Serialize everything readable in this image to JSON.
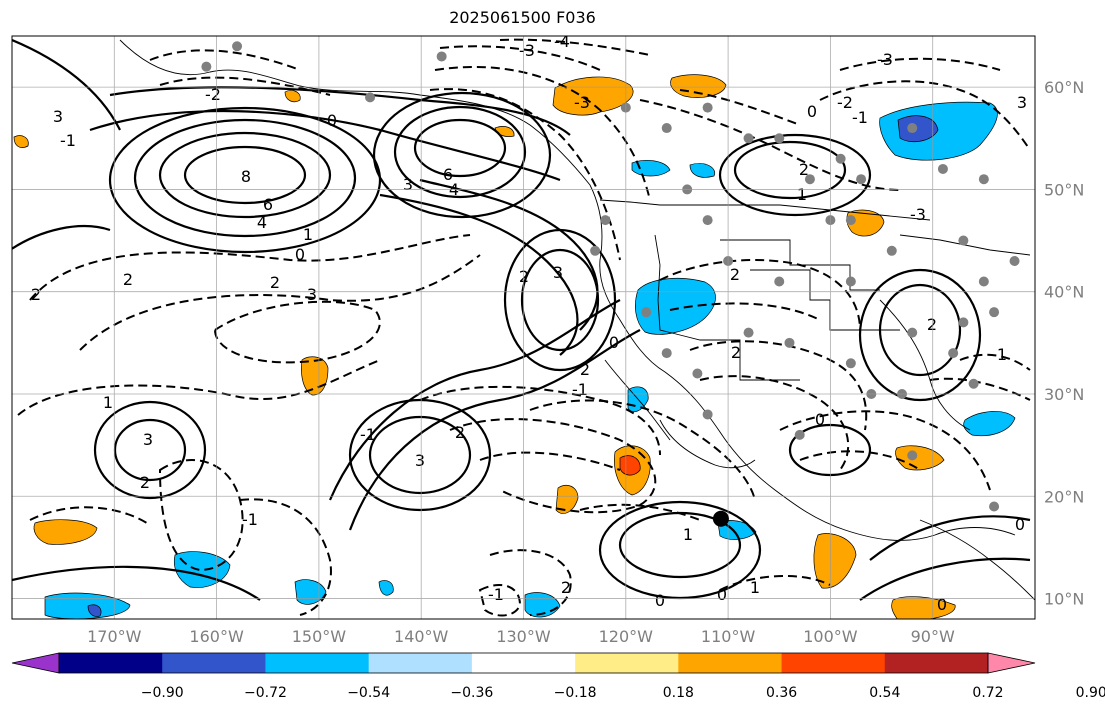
{
  "title": "2025061500 F036",
  "map": {
    "extent_lon": [
      -180,
      -80
    ],
    "extent_lat": [
      8,
      65
    ],
    "lon_ticks": [
      {
        "v": -170,
        "label": "170°W"
      },
      {
        "v": -160,
        "label": "160°W"
      },
      {
        "v": -150,
        "label": "150°W"
      },
      {
        "v": -140,
        "label": "140°W"
      },
      {
        "v": -130,
        "label": "130°W"
      },
      {
        "v": -120,
        "label": "120°W"
      },
      {
        "v": -110,
        "label": "110°W"
      },
      {
        "v": -100,
        "label": "100°W"
      },
      {
        "v": -90,
        "label": "90°W"
      }
    ],
    "lat_ticks": [
      {
        "v": 10,
        "label": "10°N"
      },
      {
        "v": 20,
        "label": "20°N"
      },
      {
        "v": 30,
        "label": "30°N"
      },
      {
        "v": 40,
        "label": "40°N"
      },
      {
        "v": 50,
        "label": "50°N"
      },
      {
        "v": 60,
        "label": "60°N"
      }
    ],
    "gridlines": true,
    "marker": {
      "lon": -110.7,
      "lat": 17.8
    }
  },
  "contour_labels": [
    "8",
    "6",
    "4",
    "3",
    "0",
    "1",
    "2",
    "3",
    "6",
    "4",
    "3",
    "2",
    "3",
    "2",
    "1",
    "3",
    "2",
    "2",
    "2",
    "-1",
    "1",
    "0",
    "0",
    "1",
    "2",
    "2",
    "2",
    "-4",
    "-3",
    "-3",
    "-2",
    "-1",
    "3",
    "2",
    "-2",
    "-3",
    "-1",
    "0",
    "0",
    "-1",
    "0",
    "-1",
    "0",
    "1",
    "0",
    "0",
    "1",
    "2",
    "-1",
    "3",
    "2",
    "-3"
  ],
  "colorbar": {
    "colors": [
      "#9933cc",
      "#000088",
      "#3355cc",
      "#00bfff",
      "#b0e0ff",
      "#ffffff",
      "#ffee88",
      "#ffa500",
      "#ff4400",
      "#b22222",
      "#ff88aa"
    ],
    "tick_labels": [
      "−0.90",
      "−0.72",
      "−0.54",
      "−0.36",
      "−0.18",
      "0.18",
      "0.36",
      "0.54",
      "0.72",
      "0.90"
    ]
  },
  "station_markers": [
    [
      -158,
      64
    ],
    [
      -161,
      62
    ],
    [
      -145,
      59
    ],
    [
      -138,
      63
    ],
    [
      -112,
      58
    ],
    [
      -120,
      58
    ],
    [
      -105,
      55
    ],
    [
      -99,
      53
    ],
    [
      -97,
      51
    ],
    [
      -92,
      56
    ],
    [
      -89,
      52
    ],
    [
      -85,
      51
    ],
    [
      -122,
      47
    ],
    [
      -123,
      44
    ],
    [
      -112,
      47
    ],
    [
      -105,
      41
    ],
    [
      -110,
      43
    ],
    [
      -98,
      41
    ],
    [
      -94,
      44
    ],
    [
      -92,
      36
    ],
    [
      -87,
      37
    ],
    [
      -85,
      41
    ],
    [
      -88,
      34
    ],
    [
      -93,
      30
    ],
    [
      -98,
      33
    ],
    [
      -104,
      35
    ],
    [
      -108,
      36
    ],
    [
      -113,
      32
    ],
    [
      -116,
      34
    ],
    [
      -118,
      38
    ],
    [
      -112,
      28
    ],
    [
      -103,
      26
    ],
    [
      -96,
      30
    ],
    [
      -92,
      24
    ],
    [
      -86,
      31
    ],
    [
      -84,
      19
    ],
    [
      -87,
      45
    ],
    [
      -82,
      43
    ],
    [
      -84,
      38
    ],
    [
      -100,
      47
    ],
    [
      -98,
      47
    ],
    [
      -102,
      51
    ],
    [
      -108,
      55
    ],
    [
      -114,
      50
    ],
    [
      -116,
      56
    ]
  ]
}
